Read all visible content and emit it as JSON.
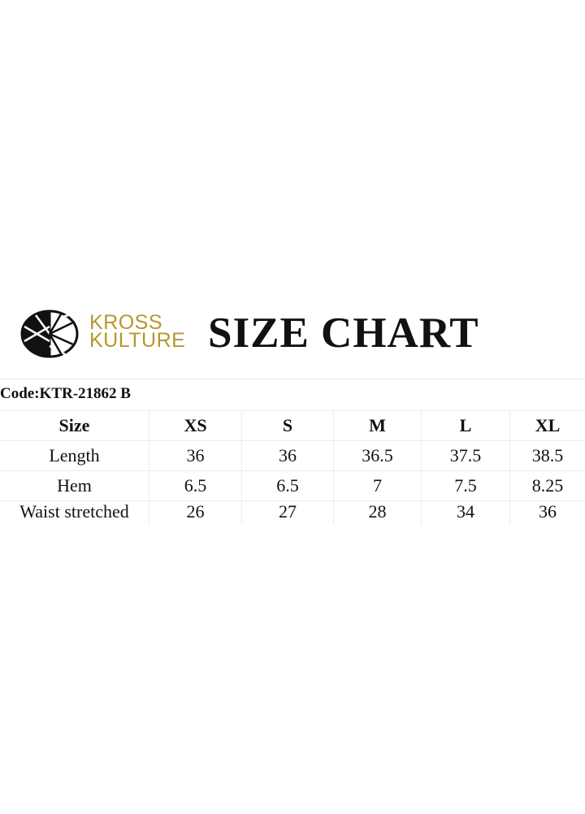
{
  "brand": {
    "line1": "KROSS",
    "line2": "KULTURE",
    "color": "#b8962e"
  },
  "title": "SIZE CHART",
  "code": "Code:KTR-21862 B",
  "table": {
    "header": [
      "Size",
      "XS",
      "S",
      "M",
      "L",
      "XL"
    ],
    "rows": [
      [
        "Length",
        "36",
        "36",
        "36.5",
        "37.5",
        "38.5"
      ],
      [
        "Hem",
        "6.5",
        "6.5",
        "7",
        "7.5",
        "8.25"
      ],
      [
        "Waist stretched",
        "26",
        "27",
        "28",
        "34",
        "36"
      ]
    ]
  }
}
